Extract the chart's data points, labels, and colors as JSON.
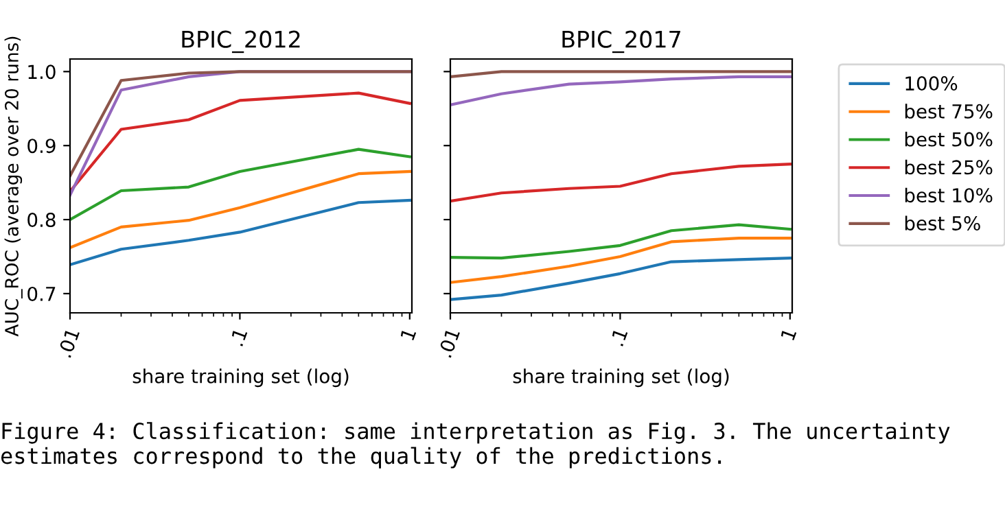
{
  "chart_data": [
    {
      "type": "line",
      "title": "BPIC_2012",
      "xlabel": "share training set (log)",
      "ylabel": "AUC_ROC (average over 20 runs)",
      "log": "x",
      "grid": false,
      "legend": "right",
      "x": [
        0.01,
        0.02,
        0.05,
        0.1,
        0.5,
        1
      ],
      "xlim": [
        0.01,
        1.03
      ],
      "xticks": [
        {
          "value": 0.01,
          "label": ".01"
        },
        {
          "value": 0.1,
          "label": ".1"
        },
        {
          "value": 1,
          "label": "1"
        }
      ],
      "ylim": [
        0.674,
        1.017
      ],
      "yticks": [
        0.7,
        0.8,
        0.9,
        {
          "value": 1.0,
          "label": "1.0"
        }
      ],
      "series": [
        {
          "name": "100%",
          "color": "#1f77b4",
          "values": [
            0.739,
            0.76,
            0.772,
            0.783,
            0.823,
            0.826
          ]
        },
        {
          "name": "best 75%",
          "color": "#ff7f0e",
          "values": [
            0.762,
            0.79,
            0.799,
            0.816,
            0.862,
            0.865
          ]
        },
        {
          "name": "best 50%",
          "color": "#2ca02c",
          "values": [
            0.8,
            0.839,
            0.844,
            0.865,
            0.895,
            0.885
          ]
        },
        {
          "name": "best 25%",
          "color": "#d62728",
          "values": [
            0.838,
            0.922,
            0.935,
            0.961,
            0.971,
            0.957
          ]
        },
        {
          "name": "best 10%",
          "color": "#9467bd",
          "values": [
            0.833,
            0.975,
            0.993,
            1.0,
            1.0,
            1.0
          ]
        },
        {
          "name": "best 5%",
          "color": "#8c564b",
          "values": [
            0.859,
            0.988,
            0.998,
            1.0,
            1.0,
            1.0
          ]
        }
      ]
    },
    {
      "type": "line",
      "title": "BPIC_2017",
      "xlabel": "share training set (log)",
      "log": "x",
      "grid": false,
      "tick_labels": "x",
      "x": [
        0.01,
        0.02,
        0.05,
        0.1,
        0.2,
        0.5,
        1
      ],
      "xlim": [
        0.01,
        1.03
      ],
      "xticks": [
        {
          "value": 0.01,
          "label": ".01"
        },
        {
          "value": 0.1,
          "label": ".1"
        },
        {
          "value": 1,
          "label": "1"
        }
      ],
      "ylim": [
        0.674,
        1.017
      ],
      "yticks": [
        0.7,
        0.8,
        0.9,
        1.0
      ],
      "annotations": [
        "Figure 4: Classification: same interpretation as Fig. 3. The uncertainty estimates correspond to the quality of the predictions."
      ],
      "series": [
        {
          "color": "#1f77b4",
          "values": [
            0.692,
            0.698,
            0.714,
            0.727,
            0.743,
            0.746,
            0.748
          ]
        },
        {
          "color": "#ff7f0e",
          "values": [
            0.715,
            0.723,
            0.737,
            0.75,
            0.77,
            0.775,
            0.775
          ]
        },
        {
          "color": "#2ca02c",
          "values": [
            0.749,
            0.748,
            0.757,
            0.765,
            0.785,
            0.793,
            0.787
          ]
        },
        {
          "color": "#d62728",
          "values": [
            0.825,
            0.836,
            0.842,
            0.845,
            0.862,
            0.872,
            0.875
          ]
        },
        {
          "color": "#9467bd",
          "values": [
            0.955,
            0.97,
            0.983,
            0.986,
            0.99,
            0.993,
            0.993
          ]
        },
        {
          "color": "#8c564b",
          "values": [
            0.993,
            1.0,
            1.0,
            1.0,
            1.0,
            1.0,
            1.0
          ]
        }
      ]
    }
  ]
}
